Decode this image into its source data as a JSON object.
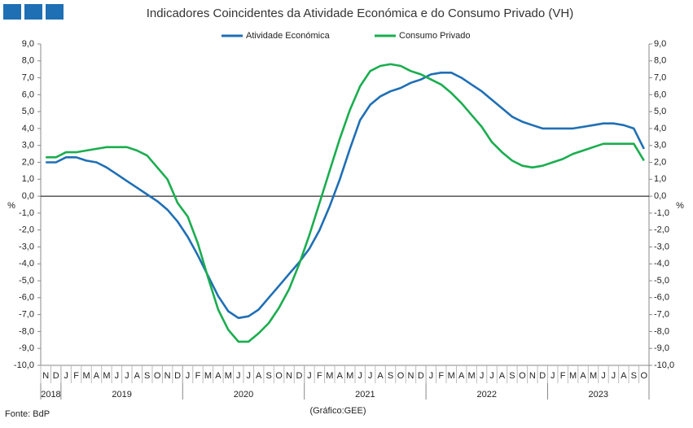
{
  "chart_data": {
    "type": "line",
    "title": "Indicadores Coincidentes da Atividade Económica e do Consumo Privado (VH)",
    "ylabel": "%",
    "y2label": "%",
    "source": "Fonte: BdP",
    "credit": "(Gráfico:GEE)",
    "categories": [
      "N",
      "D",
      "J",
      "F",
      "M",
      "A",
      "M",
      "J",
      "J",
      "A",
      "S",
      "O",
      "N",
      "D",
      "J",
      "F",
      "M",
      "A",
      "M",
      "J",
      "J",
      "A",
      "S",
      "O",
      "N",
      "D",
      "J",
      "F",
      "M",
      "A",
      "M",
      "J",
      "J",
      "A",
      "S",
      "O",
      "N",
      "D",
      "J",
      "F",
      "M",
      "A",
      "M",
      "J",
      "J",
      "A",
      "S",
      "O",
      "N",
      "D",
      "J",
      "F",
      "M",
      "A",
      "M",
      "J",
      "J",
      "A",
      "S",
      "O"
    ],
    "years": [
      "2018",
      "2019",
      "2020",
      "2021",
      "2022",
      "2023"
    ],
    "series": [
      {
        "name": "Atividade Económica",
        "color": "#1f6fb4",
        "values": [
          2.0,
          2.0,
          2.3,
          2.3,
          2.1,
          2.0,
          1.7,
          1.3,
          0.9,
          0.5,
          0.1,
          -0.3,
          -0.8,
          -1.5,
          -2.4,
          -3.5,
          -4.7,
          -5.9,
          -6.8,
          -7.2,
          -7.1,
          -6.7,
          -6.0,
          -5.3,
          -4.6,
          -3.9,
          -3.1,
          -2.0,
          -0.6,
          1.0,
          2.8,
          4.5,
          5.4,
          5.9,
          6.2,
          6.4,
          6.7,
          6.9,
          7.2,
          7.3,
          7.3,
          7.0,
          6.6,
          6.2,
          5.7,
          5.2,
          4.7,
          4.4,
          4.2,
          4.0,
          4.0,
          4.0,
          4.0,
          4.1,
          4.2,
          4.3,
          4.3,
          4.2,
          4.0,
          2.8
        ]
      },
      {
        "name": "Consumo Privado",
        "color": "#1aad4f",
        "values": [
          2.3,
          2.3,
          2.6,
          2.6,
          2.7,
          2.8,
          2.9,
          2.9,
          2.9,
          2.7,
          2.4,
          1.7,
          1.0,
          -0.4,
          -1.2,
          -2.8,
          -4.8,
          -6.7,
          -7.9,
          -8.6,
          -8.6,
          -8.1,
          -7.5,
          -6.6,
          -5.5,
          -4.0,
          -2.3,
          -0.4,
          1.5,
          3.4,
          5.1,
          6.5,
          7.4,
          7.7,
          7.8,
          7.7,
          7.4,
          7.2,
          6.9,
          6.6,
          6.1,
          5.5,
          4.8,
          4.1,
          3.2,
          2.6,
          2.1,
          1.8,
          1.7,
          1.8,
          2.0,
          2.2,
          2.5,
          2.7,
          2.9,
          3.1,
          3.1,
          3.1,
          3.1,
          2.1
        ]
      }
    ],
    "ylim": [
      -10,
      9
    ],
    "yticks": [
      {
        "value": -10,
        "label": "-10,0"
      },
      {
        "value": -9,
        "label": "-9,0"
      },
      {
        "value": -8,
        "label": "-8,0"
      },
      {
        "value": -7,
        "label": "-7,0"
      },
      {
        "value": -6,
        "label": "-6,0"
      },
      {
        "value": -5,
        "label": "-5,0"
      },
      {
        "value": -4,
        "label": "-4,0"
      },
      {
        "value": -3,
        "label": "-3,0"
      },
      {
        "value": -2,
        "label": "-2,0"
      },
      {
        "value": -1,
        "label": "-1,0"
      },
      {
        "value": 0,
        "label": "0,0"
      },
      {
        "value": 1,
        "label": "1,0"
      },
      {
        "value": 2,
        "label": "2,0"
      },
      {
        "value": 3,
        "label": "3,0"
      },
      {
        "value": 4,
        "label": "4,0"
      },
      {
        "value": 5,
        "label": "5,0"
      },
      {
        "value": 6,
        "label": "6,0"
      },
      {
        "value": 7,
        "label": "7,0"
      },
      {
        "value": 8,
        "label": "8,0"
      },
      {
        "value": 9,
        "label": "9,0"
      }
    ]
  }
}
